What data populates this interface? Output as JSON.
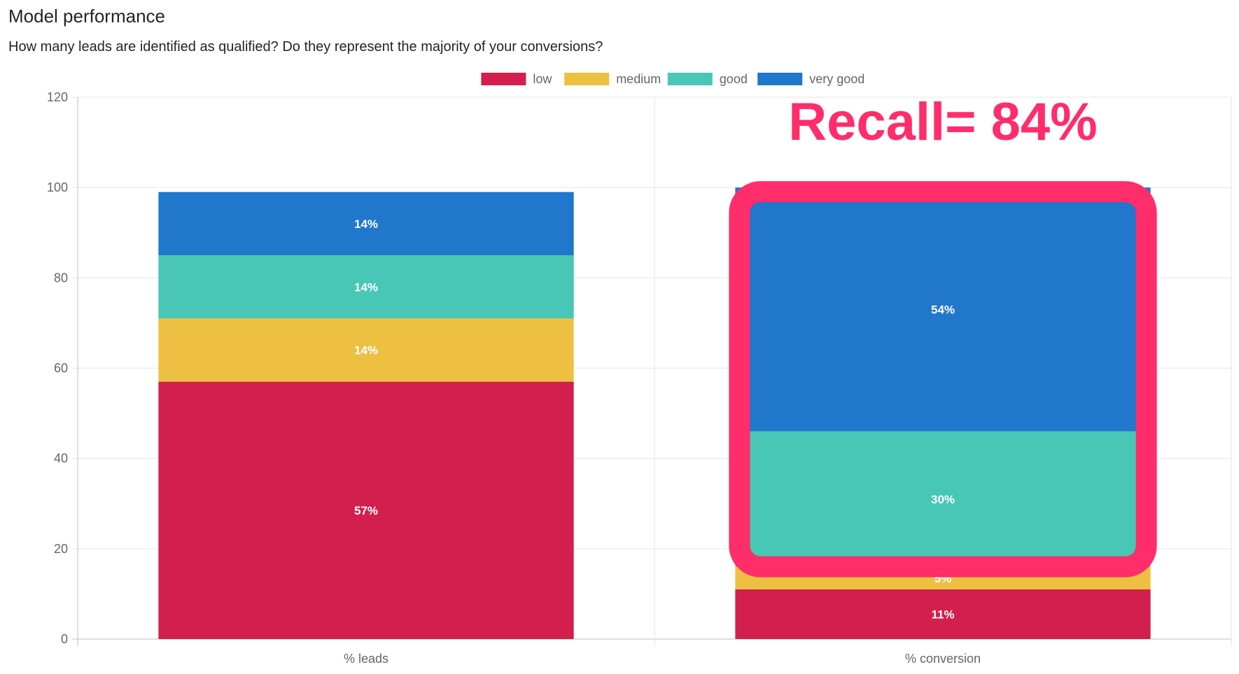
{
  "header": {
    "title": "Model performance",
    "subtitle": "How many leads are identified as qualified? Do they represent the majority of your conversions?"
  },
  "annotation": {
    "text": "Recall= 84%",
    "color": "#ff2d6a",
    "highlight_series": [
      "good",
      "very good"
    ],
    "highlight_category": "% conversion"
  },
  "chart_data": {
    "type": "bar",
    "stacked": true,
    "categories": [
      "% leads",
      "% conversion"
    ],
    "series": [
      {
        "name": "low",
        "color": "#d31f4d",
        "values": [
          57,
          11
        ],
        "labels": [
          "57%",
          "11%"
        ]
      },
      {
        "name": "medium",
        "color": "#edc042",
        "values": [
          14,
          5
        ],
        "labels": [
          "14%",
          "5%"
        ]
      },
      {
        "name": "good",
        "color": "#48c6b6",
        "values": [
          14,
          30
        ],
        "labels": [
          "14%",
          "30%"
        ]
      },
      {
        "name": "very good",
        "color": "#2077cb",
        "values": [
          14,
          54
        ],
        "labels": [
          "14%",
          "54%"
        ]
      }
    ],
    "ylim": [
      0,
      120
    ],
    "yticks": [
      "0",
      "20",
      "40",
      "60",
      "80",
      "100",
      "120"
    ],
    "grid": true,
    "legend": "top-center",
    "xlabel": "",
    "ylabel": ""
  }
}
